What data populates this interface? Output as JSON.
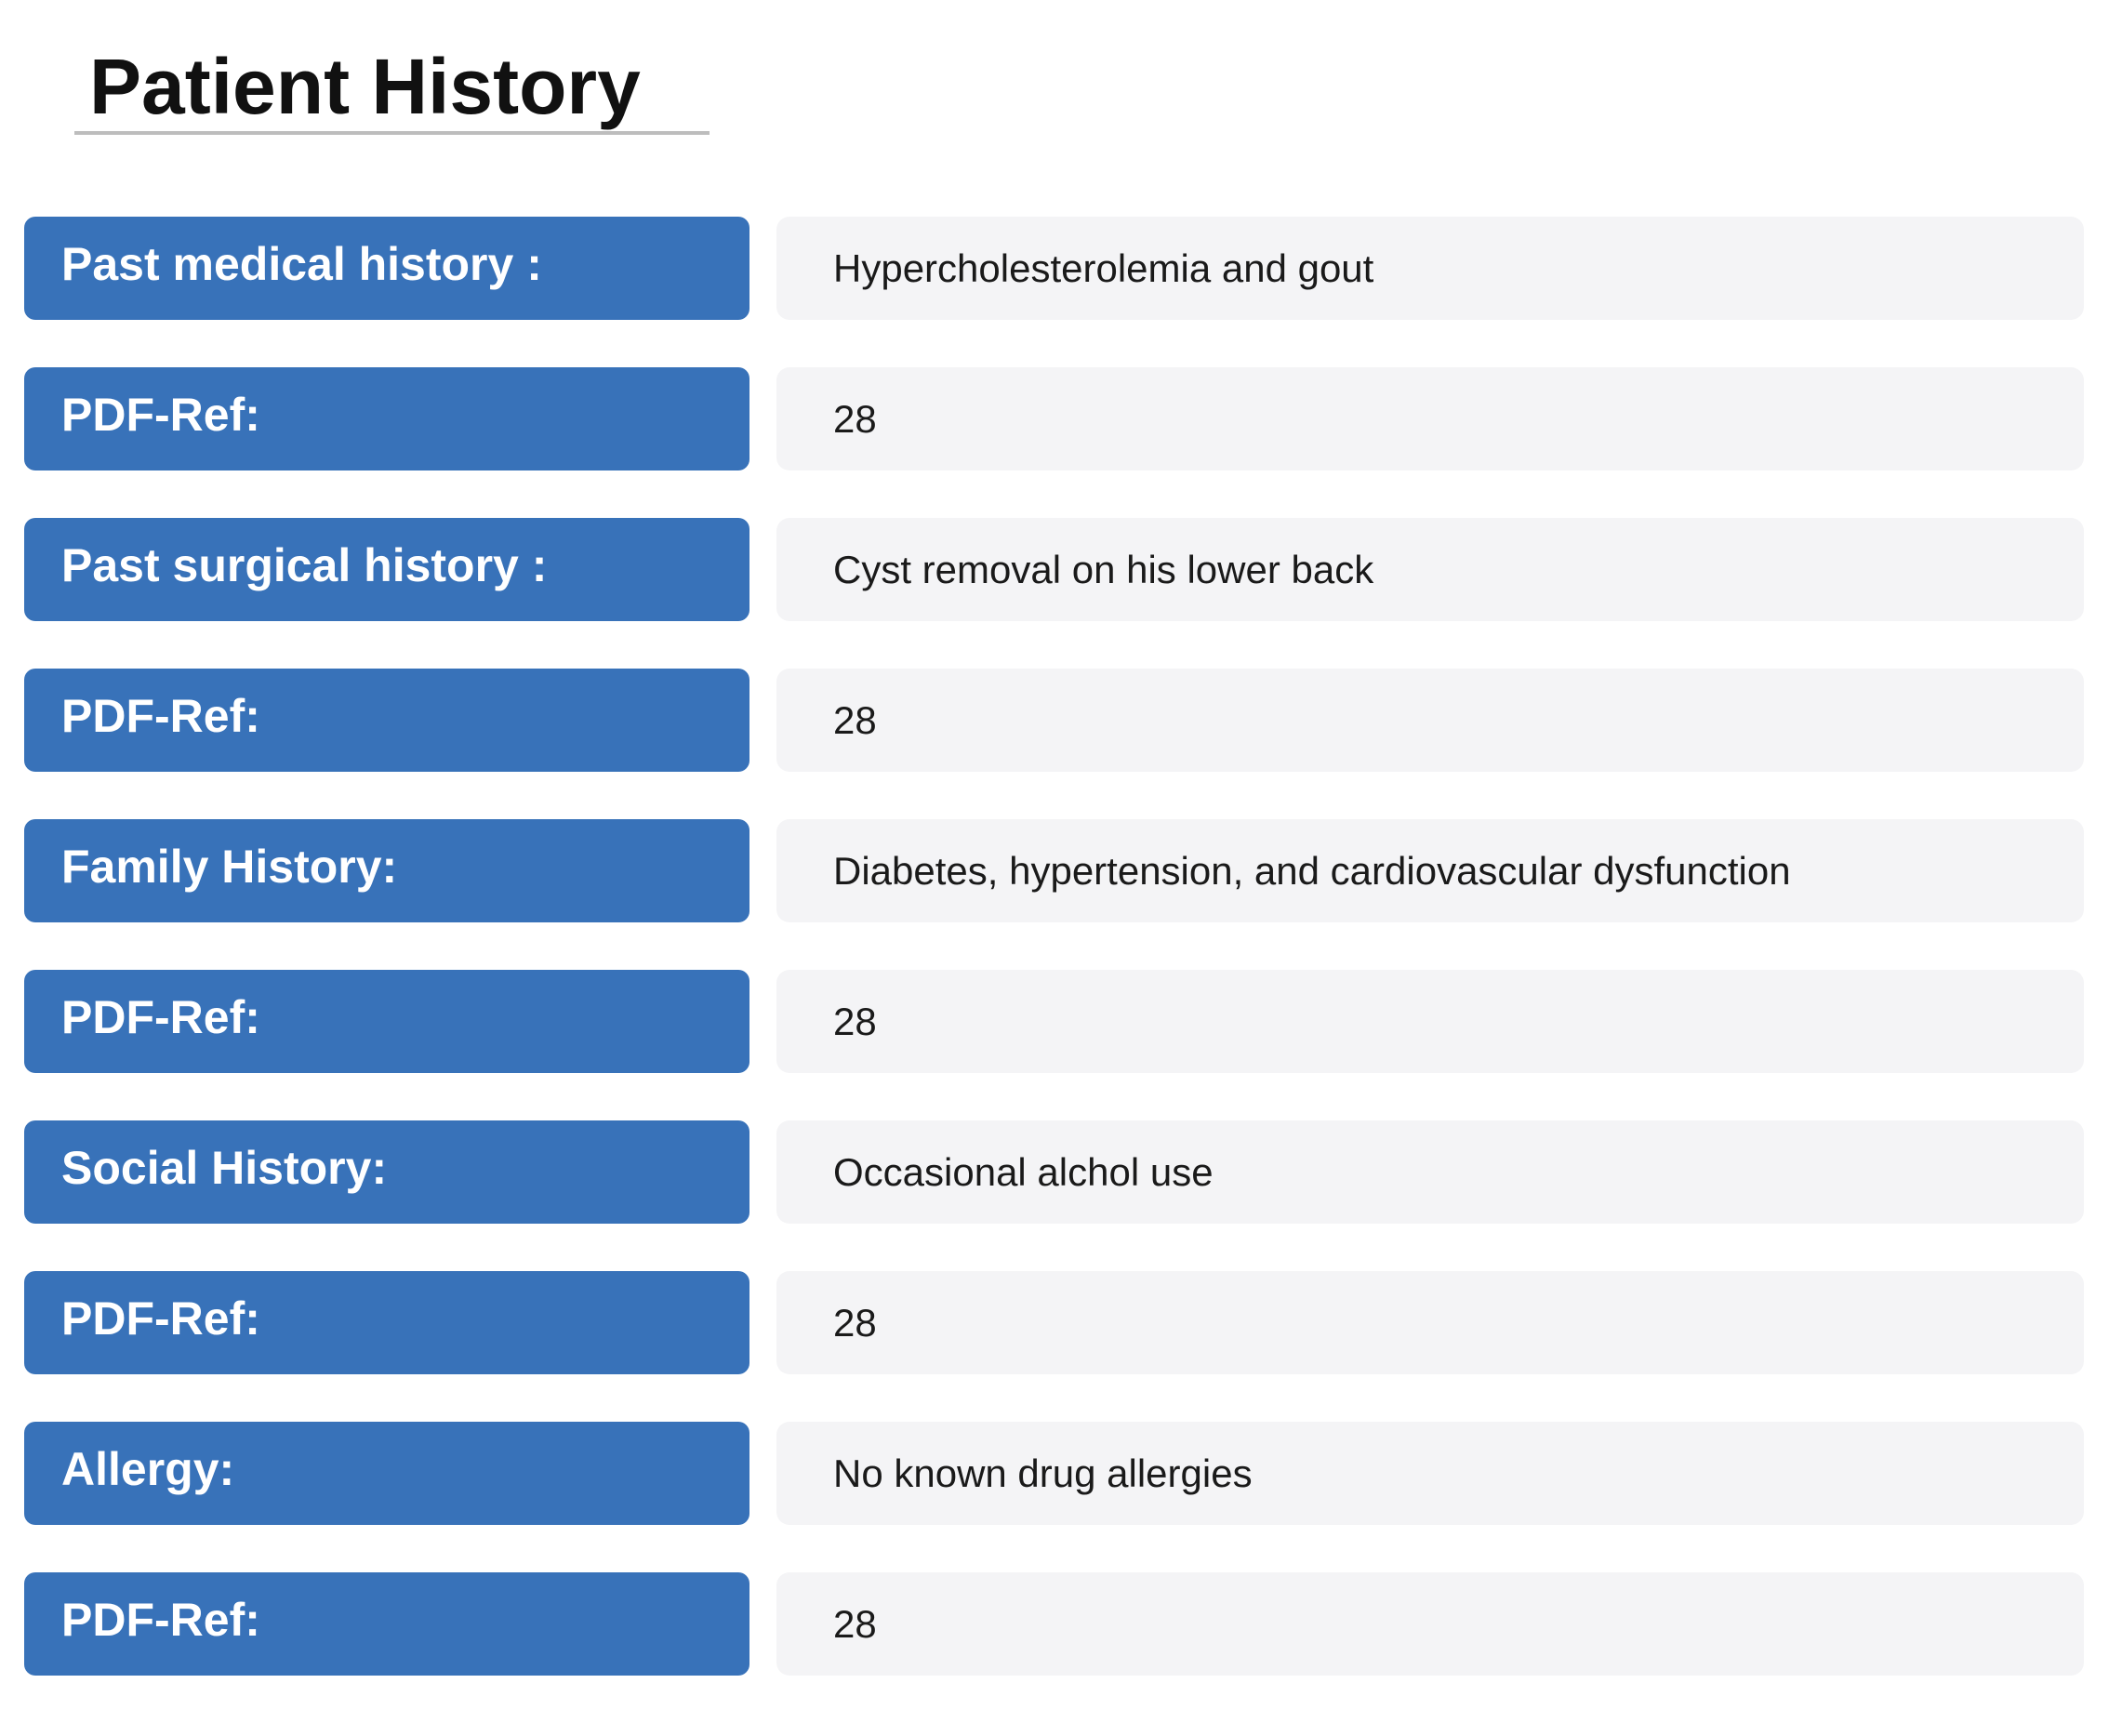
{
  "page_title": "Patient History",
  "rows": [
    {
      "label": "Past medical history :",
      "value": "Hypercholesterolemia and gout"
    },
    {
      "label": "PDF-Ref:",
      "value": "28"
    },
    {
      "label": "Past surgical history :",
      "value": "Cyst removal on his lower back"
    },
    {
      "label": "PDF-Ref:",
      "value": "28"
    },
    {
      "label": "Family History:",
      "value": "Diabetes, hypertension, and cardiovascular dysfunction"
    },
    {
      "label": "PDF-Ref:",
      "value": "28"
    },
    {
      "label": "Social History:",
      "value": "Occasional alchol use"
    },
    {
      "label": "PDF-Ref:",
      "value": "28"
    },
    {
      "label": "Allergy:",
      "value": "No known drug allergies"
    },
    {
      "label": "PDF-Ref:",
      "value": "28"
    }
  ],
  "colors": {
    "label_background": "#3872b9",
    "value_background": "#f4f4f6",
    "title_underline": "#bdbdbd"
  }
}
